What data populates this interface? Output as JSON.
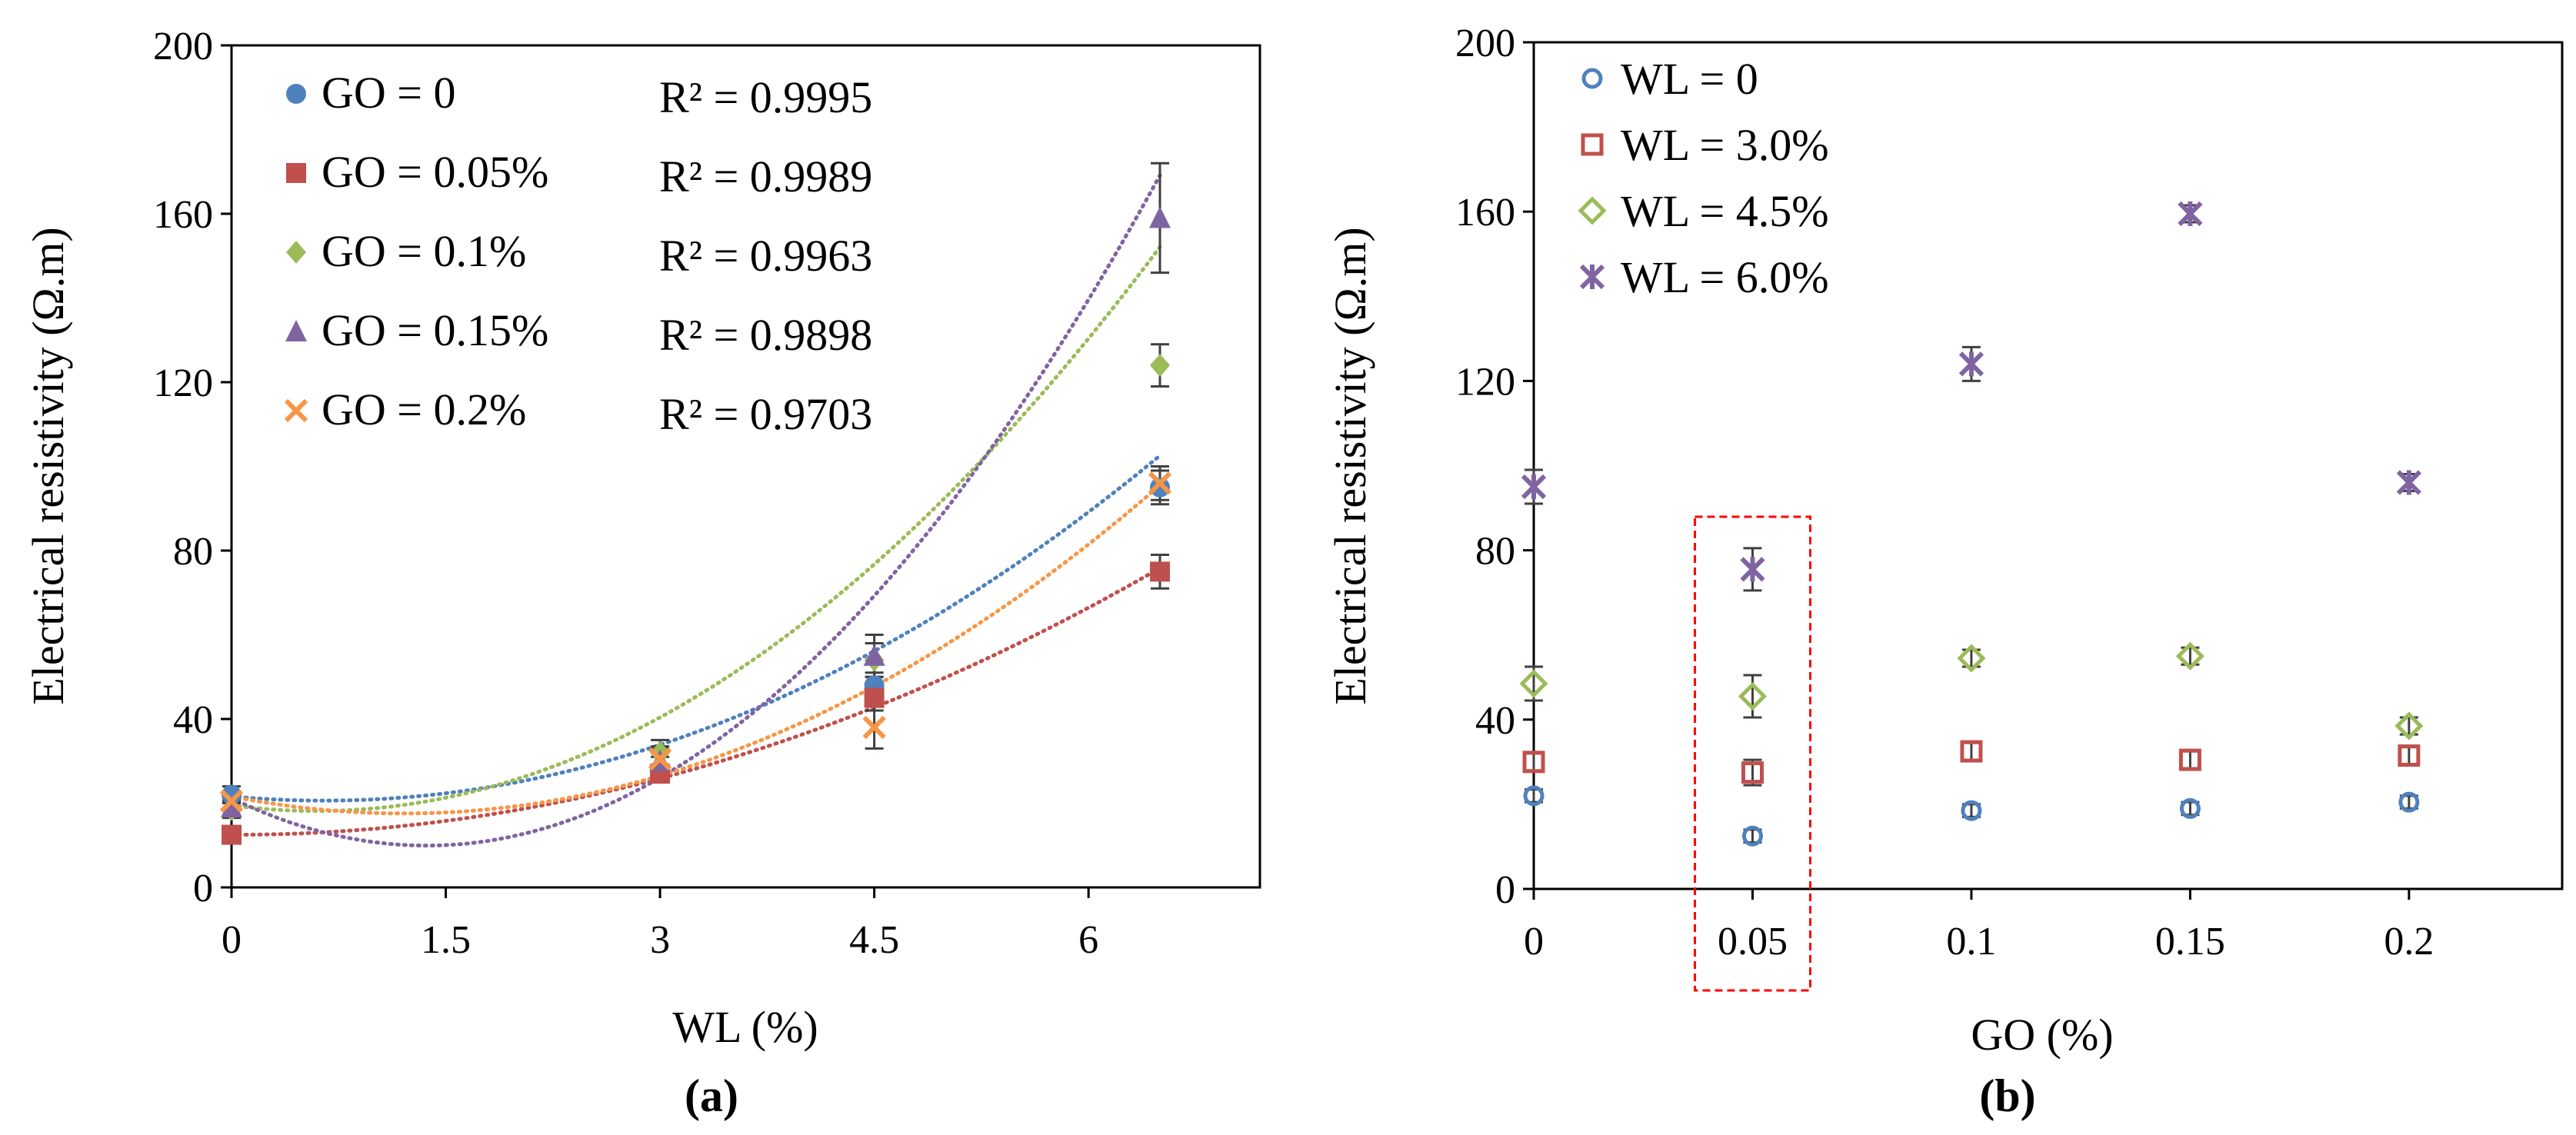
{
  "chart_data": [
    {
      "type": "scatter",
      "panel_label": "(a)",
      "xlabel": "WL (%)",
      "ylabel": "Electrical resistivity (Ω.m)",
      "xlim": [
        0,
        7.2
      ],
      "ylim": [
        0,
        200
      ],
      "xticks": [
        0,
        1.5,
        3,
        4.5,
        6
      ],
      "xtick_labels": [
        "0",
        "1.5",
        "3",
        "4.5",
        "6"
      ],
      "yticks": [
        0,
        40,
        80,
        120,
        160,
        200
      ],
      "ytick_labels": [
        "0",
        "40",
        "80",
        "120",
        "160",
        "200"
      ],
      "grid": false,
      "legend_position": "top-left",
      "trendline": "polynomial order 2 (dotted)",
      "series": [
        {
          "name": "GO = 0",
          "label": "GO = 0",
          "r2_text": "R² = 0.9995",
          "marker": "circle",
          "color": "#4F81BD",
          "x": [
            0,
            3,
            4.5,
            6.5
          ],
          "values": [
            22,
            28,
            48,
            95
          ],
          "err": [
            2,
            3,
            3,
            4
          ],
          "fit": [
            21.6,
            -3.08,
            2.39
          ]
        },
        {
          "name": "GO = 0.05%",
          "label": "GO = 0.05%",
          "r2_text": "R² = 0.9989",
          "marker": "square",
          "color": "#C0504D",
          "x": [
            0,
            3,
            4.5,
            6.5
          ],
          "values": [
            12.5,
            27,
            45,
            75
          ],
          "err": [
            1.5,
            2,
            3,
            4
          ],
          "fit": [
            12.5,
            -0.07,
            1.51
          ]
        },
        {
          "name": "GO = 0.1%",
          "label": "GO = 0.1%",
          "r2_text": "R² = 0.9963",
          "marker": "diamond",
          "color": "#9BBB59",
          "x": [
            0,
            3,
            4.5,
            6.5
          ],
          "values": [
            18.5,
            32,
            54,
            124
          ],
          "err": [
            2,
            3,
            4,
            5
          ],
          "fit": [
            19.5,
            -4.56,
            3.84
          ]
        },
        {
          "name": "GO = 0.15%",
          "label": "GO = 0.15%",
          "r2_text": "R² = 0.9898",
          "marker": "triangle",
          "color": "#8064A2",
          "x": [
            0,
            3,
            4.5,
            6.5
          ],
          "values": [
            19,
            30,
            55,
            159
          ],
          "err": [
            2,
            3,
            5,
            13
          ],
          "fit": [
            21.2,
            -16.5,
            6.04
          ]
        },
        {
          "name": "GO = 0.2%",
          "label": "GO = 0.2%",
          "r2_text": "R² = 0.9703",
          "marker": "x",
          "color": "#F79646",
          "x": [
            0,
            3,
            4.5,
            6.5
          ],
          "values": [
            20.5,
            30.5,
            38,
            96
          ],
          "err": [
            2,
            3,
            5,
            4
          ],
          "fit": [
            21.6,
            -6.7,
            2.78
          ]
        }
      ]
    },
    {
      "type": "scatter",
      "panel_label": "(b)",
      "xlabel": "GO (%)",
      "ylabel": "Electrical resistivity (Ω.m)",
      "xlim": [
        0,
        0.235
      ],
      "ylim": [
        0,
        200
      ],
      "xticks": [
        0,
        0.05,
        0.1,
        0.15,
        0.2
      ],
      "xtick_labels": [
        "0",
        "0.05",
        "0.1",
        "0.15",
        "0.2"
      ],
      "yticks": [
        0,
        40,
        80,
        120,
        160,
        200
      ],
      "ytick_labels": [
        "0",
        "40",
        "80",
        "120",
        "160",
        "200"
      ],
      "grid": false,
      "legend_position": "top-left",
      "highlight": {
        "x": 0.05,
        "style": "red dashed box"
      },
      "series": [
        {
          "name": "WL = 0",
          "label": "WL = 0",
          "marker": "open-circle",
          "color": "#4F81BD",
          "x": [
            0,
            0.05,
            0.1,
            0.15,
            0.2
          ],
          "values": [
            22,
            12.5,
            18.5,
            19,
            20.5
          ],
          "err": [
            1.5,
            1.5,
            1.5,
            1.5,
            1.5
          ]
        },
        {
          "name": "WL = 3.0%",
          "label": "WL = 3.0%",
          "marker": "open-square",
          "color": "#C0504D",
          "x": [
            0,
            0.05,
            0.1,
            0.15,
            0.2
          ],
          "values": [
            30,
            27.5,
            32.5,
            30.5,
            31.5
          ],
          "err": [
            2,
            3,
            2,
            2,
            2
          ]
        },
        {
          "name": "WL = 4.5%",
          "label": "WL = 4.5%",
          "marker": "open-diamond",
          "color": "#9BBB59",
          "x": [
            0,
            0.05,
            0.1,
            0.15,
            0.2
          ],
          "values": [
            48.5,
            45.5,
            54.5,
            55,
            38.5
          ],
          "err": [
            4,
            5,
            2,
            2,
            2
          ]
        },
        {
          "name": "WL = 6.0%",
          "label": "WL = 6.0%",
          "marker": "asterisk",
          "color": "#8064A2",
          "x": [
            0,
            0.05,
            0.1,
            0.15,
            0.2
          ],
          "values": [
            95,
            75.5,
            124,
            159.5,
            96
          ],
          "err": [
            4,
            5,
            4,
            2,
            2
          ]
        }
      ]
    }
  ]
}
